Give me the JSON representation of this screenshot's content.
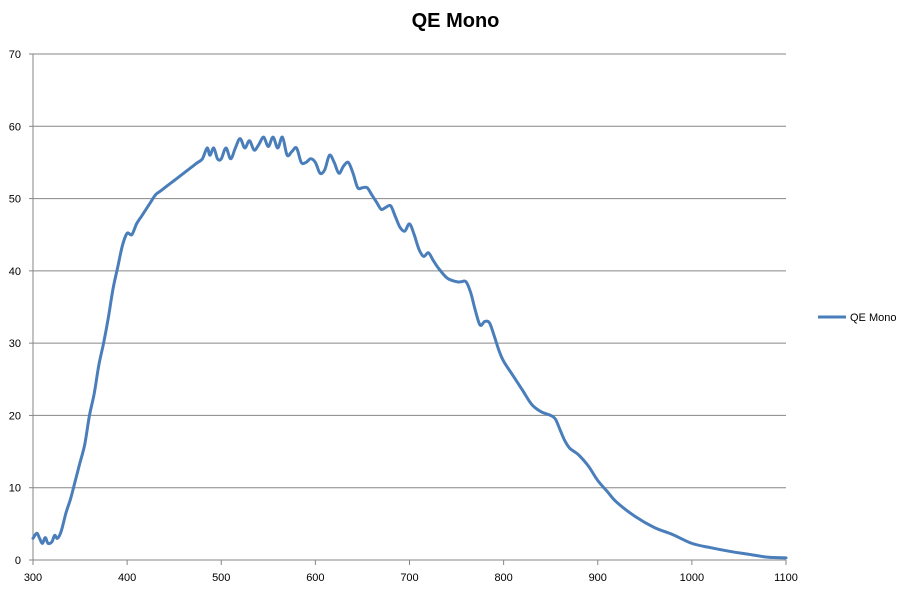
{
  "chart_data": {
    "type": "line",
    "title": "QE Mono",
    "xlabel": "",
    "ylabel": "",
    "xlim": [
      300,
      1100
    ],
    "ylim": [
      0,
      70
    ],
    "xticks": [
      300,
      400,
      500,
      600,
      700,
      800,
      900,
      1000,
      1100
    ],
    "yticks": [
      0,
      10,
      20,
      30,
      40,
      50,
      60,
      70
    ],
    "grid": "horizontal",
    "legend_position": "right",
    "series": [
      {
        "name": "QE Mono",
        "color": "#4a7ebb",
        "x": [
          300,
          304,
          307,
          310,
          313,
          316,
          320,
          323,
          326,
          330,
          335,
          340,
          345,
          350,
          355,
          360,
          365,
          370,
          375,
          380,
          385,
          390,
          395,
          400,
          405,
          410,
          415,
          420,
          425,
          430,
          435,
          440,
          445,
          450,
          455,
          460,
          465,
          470,
          475,
          480,
          485,
          488,
          492,
          496,
          500,
          505,
          510,
          515,
          520,
          525,
          530,
          535,
          540,
          545,
          550,
          555,
          560,
          565,
          570,
          575,
          580,
          585,
          590,
          595,
          600,
          605,
          610,
          615,
          620,
          625,
          630,
          635,
          640,
          645,
          650,
          655,
          660,
          665,
          670,
          675,
          680,
          685,
          690,
          695,
          700,
          705,
          710,
          715,
          720,
          725,
          730,
          740,
          750,
          755,
          760,
          765,
          770,
          775,
          780,
          785,
          790,
          795,
          800,
          810,
          820,
          830,
          840,
          850,
          855,
          860,
          865,
          870,
          875,
          880,
          890,
          900,
          910,
          920,
          940,
          960,
          980,
          1000,
          1020,
          1040,
          1060,
          1080,
          1100
        ],
        "values": [
          3.0,
          3.7,
          3.0,
          2.3,
          3.1,
          2.3,
          2.5,
          3.4,
          3.0,
          4.0,
          6.5,
          8.5,
          11.0,
          13.5,
          16.0,
          20.0,
          23.0,
          27.0,
          30.0,
          33.5,
          37.5,
          40.5,
          43.5,
          45.2,
          45.0,
          46.5,
          47.5,
          48.5,
          49.5,
          50.5,
          51.0,
          51.5,
          52.0,
          52.5,
          53.0,
          53.5,
          54.0,
          54.5,
          55.0,
          55.5,
          57.0,
          56.0,
          57.0,
          55.5,
          55.5,
          57.0,
          55.5,
          57.0,
          58.3,
          57.0,
          58.0,
          56.7,
          57.5,
          58.5,
          57.2,
          58.5,
          57.0,
          58.5,
          56.0,
          56.5,
          57.0,
          55.0,
          55.0,
          55.5,
          55.0,
          53.5,
          54.0,
          56.0,
          55.0,
          53.5,
          54.5,
          55.0,
          53.5,
          51.5,
          51.5,
          51.5,
          50.5,
          49.5,
          48.5,
          48.8,
          49.0,
          47.5,
          46.0,
          45.5,
          46.5,
          45.0,
          43.0,
          42.0,
          42.5,
          41.5,
          40.5,
          39.0,
          38.5,
          38.5,
          38.5,
          37.0,
          34.5,
          32.5,
          33.0,
          32.8,
          31.0,
          29.0,
          27.5,
          25.5,
          23.5,
          21.5,
          20.5,
          20.0,
          19.5,
          18.0,
          16.5,
          15.5,
          15.0,
          14.5,
          13.0,
          11.0,
          9.5,
          8.0,
          6.0,
          4.5,
          3.5,
          2.3,
          1.7,
          1.2,
          0.8,
          0.4,
          0.3
        ]
      }
    ]
  }
}
